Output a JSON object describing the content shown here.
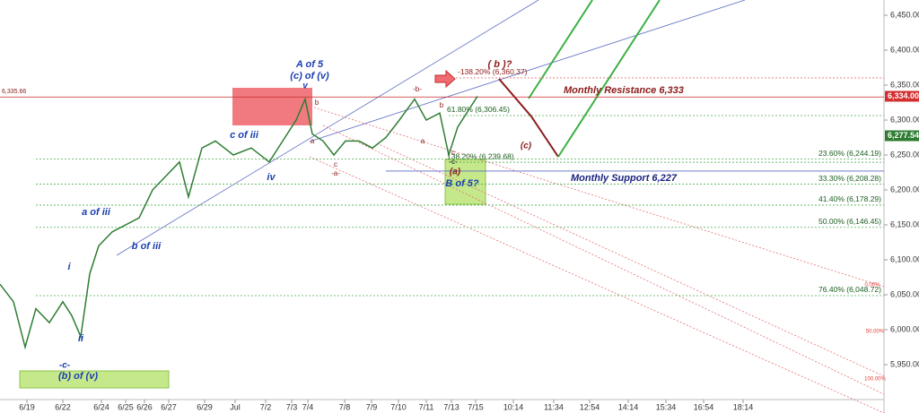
{
  "chart_data": {
    "type": "line",
    "x": [
      0,
      15,
      28,
      40,
      55,
      70,
      80,
      90,
      100,
      110,
      125,
      140,
      155,
      170,
      185,
      200,
      210,
      225,
      240,
      260,
      280,
      300,
      315,
      330,
      340,
      348,
      360,
      372,
      385,
      400,
      415,
      430,
      445,
      462,
      475,
      490,
      500,
      510,
      520,
      532
    ],
    "series": [
      {
        "color": "#2e7d32",
        "values": [
          6065,
          6040,
          5975,
          6030,
          6010,
          6040,
          6020,
          5990,
          6080,
          6120,
          6140,
          6150,
          6160,
          6200,
          6220,
          6240,
          6190,
          6260,
          6270,
          6250,
          6260,
          6240,
          6270,
          6300,
          6330,
          6280,
          6270,
          6250,
          6270,
          6270,
          6260,
          6275,
          6300,
          6330,
          6300,
          6310,
          6250,
          6290,
          6310,
          6334
        ]
      }
    ],
    "xlim": [
      0,
      985
    ],
    "ylim": [
      5900,
      6471.8
    ],
    "xticks": [
      {
        "value": 30,
        "label": "6/19"
      },
      {
        "value": 70,
        "label": "6/22"
      },
      {
        "value": 113,
        "label": "6/24"
      },
      {
        "value": 140,
        "label": "6/25"
      },
      {
        "value": 161,
        "label": "6/26"
      },
      {
        "value": 188,
        "label": "6/27"
      },
      {
        "value": 228,
        "label": "6/29"
      },
      {
        "value": 262,
        "label": "Jul"
      },
      {
        "value": 296,
        "label": "7/2"
      },
      {
        "value": 325,
        "label": "7/3"
      },
      {
        "value": 343,
        "label": "7/4"
      },
      {
        "value": 384,
        "label": "7/8"
      },
      {
        "value": 414,
        "label": "7/9"
      },
      {
        "value": 444,
        "label": "7/10"
      },
      {
        "value": 475,
        "label": "7/11"
      },
      {
        "value": 503,
        "label": "7/13"
      },
      {
        "value": 530,
        "label": "7/15"
      },
      {
        "value": 572,
        "label": "10:14"
      },
      {
        "value": 617,
        "label": "11:34"
      },
      {
        "value": 657,
        "label": "12:54"
      },
      {
        "value": 700,
        "label": "14:14"
      },
      {
        "value": 742,
        "label": "15:34"
      },
      {
        "value": 784,
        "label": "16:54"
      },
      {
        "value": 828,
        "label": "18:14"
      }
    ],
    "yticks": [
      {
        "value": 5950,
        "label": "5,950.00"
      },
      {
        "value": 6000,
        "label": "6,000.00"
      },
      {
        "value": 6050,
        "label": "6,050.00"
      },
      {
        "value": 6100,
        "label": "6,100.00"
      },
      {
        "value": 6150,
        "label": "6,150.00"
      },
      {
        "value": 6200,
        "label": "6,200.00"
      },
      {
        "value": 6250,
        "label": "6,250.00"
      },
      {
        "value": 6300,
        "label": "6,300.00"
      },
      {
        "value": 6350,
        "label": "6,350.00"
      },
      {
        "value": 6400,
        "label": "6,400.00"
      },
      {
        "value": 6450,
        "label": "6,450.00"
      }
    ],
    "fib_levels": [
      {
        "value": 6360.37,
        "label": "-138.20% (6,360.37)"
      },
      {
        "value": 6306.45,
        "label": "61.80% (6,306.45)"
      },
      {
        "value": 6239.68,
        "label": "138.20% (6,239.68)"
      },
      {
        "value": 6244.19,
        "label": "23.60% (6,244.19)"
      },
      {
        "value": 6208.28,
        "label": "33.30% (6,208.28)"
      },
      {
        "value": 6178.29,
        "label": "41.40% (6,178.29)"
      },
      {
        "value": 6146.45,
        "label": "50.00% (6,146.45)"
      },
      {
        "value": 6048.72,
        "label": "76.40% (6,048.72)"
      }
    ],
    "resistance": {
      "value": 6333,
      "label": "Monthly Resistance 6,333"
    },
    "support": {
      "value": 6227,
      "label": "Monthly Support 6,227"
    },
    "left_marker": {
      "value": 6335.66,
      "label": "6,335.66"
    },
    "price_badges": [
      {
        "value": 6334.0,
        "label": "6,334.00",
        "color": "#d32f2f"
      },
      {
        "value": 6277.54,
        "label": "6,277.54",
        "color": "#2e7d32"
      }
    ],
    "annotations": [
      "A of 5",
      "(c) of (v)",
      "v",
      "c of iii",
      "iv",
      "a of iii",
      "b of iii",
      "i",
      "ii",
      "-c-",
      "(b) of (v)",
      "b",
      "a",
      "c",
      "-a-",
      "-b-",
      "a",
      "b",
      "-c-",
      "(a)",
      "B of 5?",
      "c",
      "( b )?",
      "(c)",
      "0.00%",
      "50.00%",
      "100.00%"
    ]
  }
}
